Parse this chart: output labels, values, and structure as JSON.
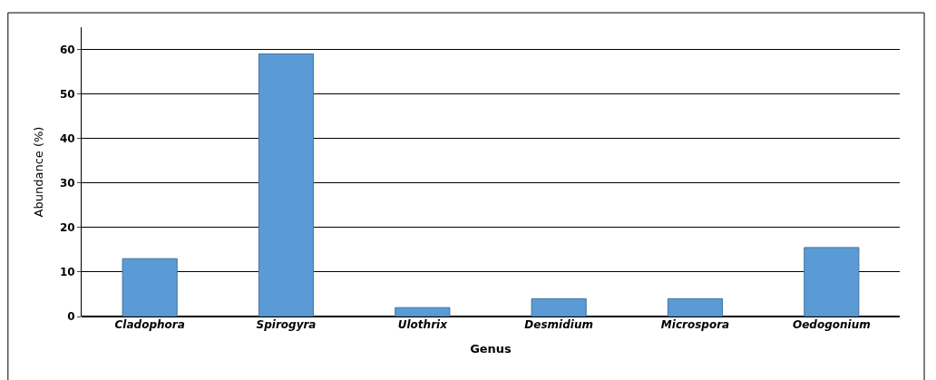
{
  "chart_data": {
    "type": "bar",
    "xlabel": "Genus",
    "ylabel": "Abundance (%)",
    "categories": [
      "Cladophora",
      "Spirogyra",
      "Ulothrix",
      "Desmidium",
      "Microspora",
      "Oedogonium"
    ],
    "values": [
      13,
      59,
      2,
      4,
      4,
      15.5
    ],
    "color": "#5b9bd5",
    "ylim": [
      0,
      65
    ],
    "yticks": [
      0,
      10,
      20,
      30,
      40,
      50,
      60
    ],
    "grid": "y"
  }
}
